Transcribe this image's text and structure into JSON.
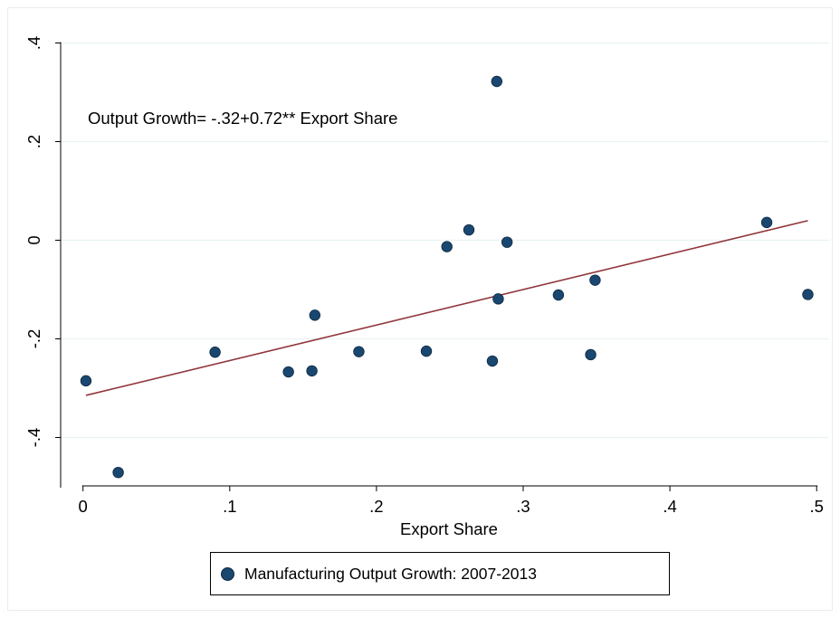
{
  "chart_data": {
    "type": "scatter",
    "xlabel": "Export Share",
    "ylabel": "",
    "xlim": [
      0,
      0.5
    ],
    "ylim": [
      -0.5,
      0.4
    ],
    "x_ticks": [
      0,
      0.1,
      0.2,
      0.3,
      0.4,
      0.5
    ],
    "x_tick_labels": [
      "0",
      ".1",
      ".2",
      ".3",
      ".4",
      ".5"
    ],
    "y_ticks": [
      -0.4,
      -0.2,
      0,
      0.2,
      0.4
    ],
    "y_tick_labels": [
      "-.4",
      "-.2",
      "0",
      ".2",
      ".4"
    ],
    "grid": "horizontal",
    "annotation": "Output Growth= -.32+0.72** Export Share",
    "legend_position": "bottom",
    "series": [
      {
        "name": "Manufacturing Output Growth: 2007-2013",
        "color": "#1a476f",
        "points": [
          {
            "x": 0.002,
            "y": -0.285
          },
          {
            "x": 0.024,
            "y": -0.471
          },
          {
            "x": 0.09,
            "y": -0.227
          },
          {
            "x": 0.14,
            "y": -0.267
          },
          {
            "x": 0.156,
            "y": -0.265
          },
          {
            "x": 0.158,
            "y": -0.152
          },
          {
            "x": 0.188,
            "y": -0.226
          },
          {
            "x": 0.234,
            "y": -0.225
          },
          {
            "x": 0.248,
            "y": -0.013
          },
          {
            "x": 0.263,
            "y": 0.021
          },
          {
            "x": 0.279,
            "y": -0.245
          },
          {
            "x": 0.282,
            "y": 0.322
          },
          {
            "x": 0.283,
            "y": -0.119
          },
          {
            "x": 0.289,
            "y": -0.004
          },
          {
            "x": 0.324,
            "y": -0.111
          },
          {
            "x": 0.346,
            "y": -0.232
          },
          {
            "x": 0.349,
            "y": -0.081
          },
          {
            "x": 0.466,
            "y": 0.036
          },
          {
            "x": 0.494,
            "y": -0.11
          }
        ]
      }
    ],
    "fit_line": {
      "color": "#90353b",
      "intercept": -0.316,
      "slope": 0.72,
      "x_range": [
        0.002,
        0.494
      ]
    }
  }
}
